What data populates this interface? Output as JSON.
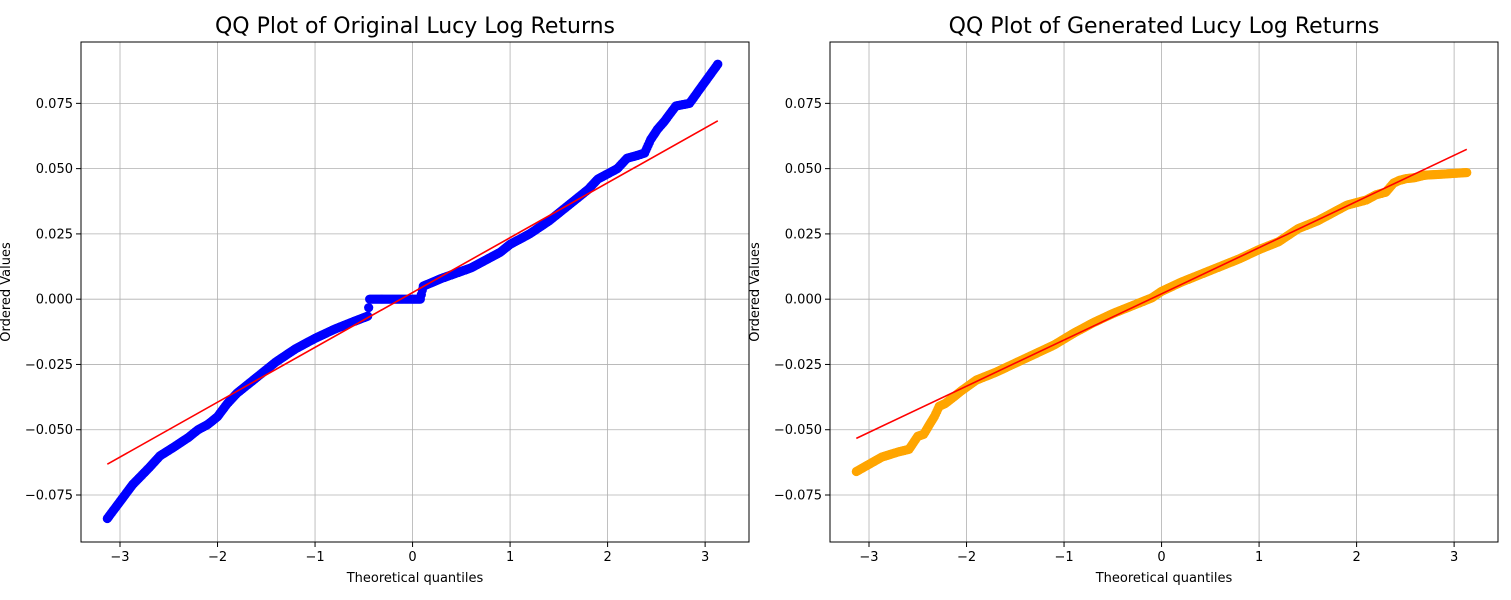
{
  "chart_data": [
    {
      "type": "scatter",
      "title": "QQ Plot of Original Lucy Log Returns",
      "xlabel": "Theoretical quantiles",
      "ylabel": "Ordered Values",
      "xlim": [
        -3.4,
        3.45
      ],
      "ylim": [
        -0.093,
        0.0985
      ],
      "x_ticks": [
        -3,
        -2,
        -1,
        0,
        1,
        2,
        3
      ],
      "x_tick_labels": [
        "−3",
        "−2",
        "−1",
        "0",
        "1",
        "2",
        "3"
      ],
      "y_ticks": [
        -0.075,
        -0.05,
        -0.025,
        0,
        0.025,
        0.05,
        0.075
      ],
      "y_tick_labels": [
        "−0.075",
        "−0.050",
        "−0.025",
        "0.000",
        "0.025",
        "0.050",
        "0.075"
      ],
      "grid": true,
      "marker_color": "#0000ff",
      "fit_line": {
        "color": "#ff0000",
        "x": [
          -3.13,
          3.13
        ],
        "y": [
          -0.0632,
          0.0683
        ]
      },
      "anchors": {
        "x": [
          -3.13,
          -2.87,
          -2.7,
          -2.59,
          -2.45,
          -2.3,
          -2.2,
          -2.1,
          -2.0,
          -1.9,
          -1.8,
          -1.6,
          -1.4,
          -1.2,
          -1.0,
          -0.8,
          -0.6,
          -0.46,
          -0.44,
          -0.3,
          -0.1,
          0.0,
          0.08,
          0.1,
          0.11,
          0.3,
          0.6,
          0.9,
          1.0,
          1.2,
          1.4,
          1.6,
          1.8,
          1.9,
          2.0,
          2.1,
          2.2,
          2.3,
          2.38,
          2.44,
          2.51,
          2.58,
          2.7,
          2.84,
          3.13
        ],
        "y": [
          -0.084,
          -0.071,
          -0.0645,
          -0.06,
          -0.0567,
          -0.053,
          -0.05,
          -0.048,
          -0.045,
          -0.04,
          -0.036,
          -0.03,
          -0.024,
          -0.019,
          -0.015,
          -0.0115,
          -0.0085,
          -0.0065,
          0.0,
          0.0,
          0.0,
          0.0,
          0.0,
          0.0035,
          0.005,
          0.008,
          0.012,
          0.018,
          0.021,
          0.025,
          0.03,
          0.036,
          0.042,
          0.046,
          0.048,
          0.05,
          0.054,
          0.055,
          0.056,
          0.061,
          0.065,
          0.068,
          0.074,
          0.075,
          0.09
        ]
      },
      "sparse_points": {
        "x": [
          -3.13,
          -2.87,
          -2.7,
          -2.59,
          -2.52,
          -2.45,
          -2.38,
          -3.0,
          3.13,
          2.84,
          2.7,
          2.58,
          2.51,
          2.44,
          2.38
        ],
        "y": [
          -0.084,
          -0.071,
          -0.0645,
          -0.06,
          -0.0597,
          -0.0567,
          -0.0555,
          0,
          0.09,
          0.075,
          0.074,
          0.068,
          0.065,
          0.061,
          0.056
        ]
      }
    },
    {
      "type": "scatter",
      "title": "QQ Plot of Generated Lucy Log Returns",
      "xlabel": "Theoretical quantiles",
      "ylabel": "Ordered Values",
      "xlim": [
        -3.4,
        3.45
      ],
      "ylim": [
        -0.093,
        0.0985
      ],
      "x_ticks": [
        -3,
        -2,
        -1,
        0,
        1,
        2,
        3
      ],
      "x_tick_labels": [
        "−3",
        "−2",
        "−1",
        "0",
        "1",
        "2",
        "3"
      ],
      "y_ticks": [
        -0.075,
        -0.05,
        -0.025,
        0,
        0.025,
        0.05,
        0.075
      ],
      "y_tick_labels": [
        "−0.075",
        "−0.050",
        "−0.025",
        "0.000",
        "0.025",
        "0.050",
        "0.075"
      ],
      "grid": true,
      "marker_color": "#ffa500",
      "fit_line": {
        "color": "#ff0000",
        "x": [
          -3.13,
          3.13
        ],
        "y": [
          -0.0533,
          0.0574
        ]
      },
      "anchors": {
        "x": [
          -3.13,
          -2.87,
          -2.7,
          -2.59,
          -2.5,
          -2.44,
          -2.38,
          -2.33,
          -2.28,
          -2.22,
          -2.15,
          -2.05,
          -1.9,
          -1.7,
          -1.5,
          -1.3,
          -1.1,
          -0.9,
          -0.7,
          -0.5,
          -0.3,
          -0.1,
          0.0,
          0.2,
          0.4,
          0.6,
          0.8,
          1.0,
          1.2,
          1.4,
          1.6,
          1.8,
          1.9,
          2.0,
          2.1,
          2.2,
          2.3,
          2.38,
          2.44,
          2.51,
          2.59,
          2.7,
          2.84,
          3.13
        ],
        "y": [
          -0.066,
          -0.0605,
          -0.0585,
          -0.0575,
          -0.0525,
          -0.0518,
          -0.048,
          -0.045,
          -0.041,
          -0.04,
          -0.038,
          -0.035,
          -0.031,
          -0.028,
          -0.0245,
          -0.021,
          -0.0175,
          -0.013,
          -0.009,
          -0.0055,
          -0.0025,
          0.0005,
          0.003,
          0.0065,
          0.0095,
          0.0125,
          0.0155,
          0.019,
          0.022,
          0.027,
          0.03,
          0.034,
          0.036,
          0.037,
          0.038,
          0.04,
          0.041,
          0.0445,
          0.0455,
          0.0462,
          0.0465,
          0.0475,
          0.0478,
          0.0485
        ]
      },
      "sparse_points": {
        "x": [
          -3.13,
          -2.87,
          -2.7,
          -2.59,
          -2.5,
          -2.44,
          -2.38,
          -2.33,
          3.13,
          2.84,
          2.7,
          2.59,
          2.51,
          2.44
        ],
        "y": [
          -0.066,
          -0.0605,
          -0.0585,
          -0.0575,
          -0.0525,
          -0.0518,
          -0.048,
          -0.045,
          0.0485,
          0.0478,
          0.0475,
          0.0465,
          0.0462,
          0.0455
        ]
      }
    }
  ]
}
